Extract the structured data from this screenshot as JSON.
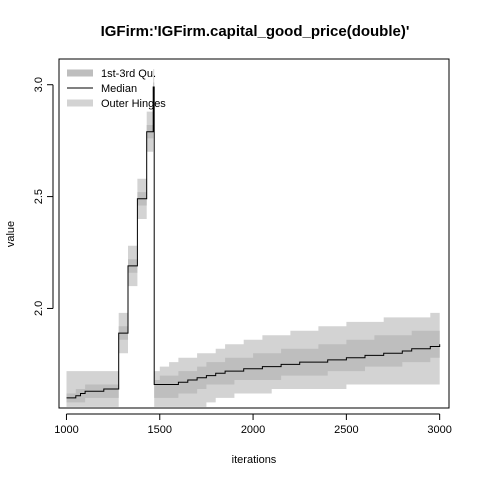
{
  "chart_data": {
    "type": "area",
    "title": "IGFirm:'IGFirm.capital_good_price(double)'",
    "xlabel": "iterations",
    "ylabel": "value",
    "xlim": [
      960,
      3050
    ],
    "ylim": [
      1.555,
      3.115
    ],
    "x_ticks": [
      1000,
      1500,
      2000,
      2500,
      3000
    ],
    "x_tick_labels": [
      "1000",
      "1500",
      "2000",
      "2500",
      "3000"
    ],
    "y_ticks": [
      2.0,
      2.5,
      3.0
    ],
    "y_tick_labels": [
      "2.0",
      "2.5",
      "3.0"
    ],
    "legend": {
      "position": "top-left",
      "entries": [
        {
          "label": "1st-3rd Qu.",
          "color": "#bebebe",
          "style": "thick-line"
        },
        {
          "label": "Median",
          "color": "#000000",
          "style": "line"
        },
        {
          "label": "Outer Hinges",
          "color": "#d3d3d3",
          "style": "thick-line"
        }
      ]
    },
    "colors": {
      "iqr": "#bebebe",
      "hinges": "#d3d3d3",
      "median": "#000000"
    },
    "series": [
      {
        "name": "Outer Hinges",
        "x": [
          1000,
          1050,
          1100,
          1150,
          1200,
          1230,
          1280,
          1330,
          1380,
          1430,
          1465,
          1470,
          1480,
          1500,
          1550,
          1600,
          1650,
          1700,
          1750,
          1800,
          1850,
          1900,
          1950,
          2000,
          2050,
          2100,
          2150,
          2200,
          2250,
          2300,
          2350,
          2400,
          2450,
          2500,
          2550,
          2600,
          2650,
          2700,
          2750,
          2800,
          2850,
          2900,
          2950,
          3000
        ],
        "low": [
          1.56,
          1.56,
          1.56,
          1.56,
          1.56,
          1.56,
          1.8,
          2.1,
          2.4,
          2.7,
          2.9,
          1.56,
          1.56,
          1.56,
          1.56,
          1.56,
          1.56,
          1.56,
          1.58,
          1.6,
          1.6,
          1.62,
          1.62,
          1.62,
          1.62,
          1.64,
          1.64,
          1.64,
          1.64,
          1.64,
          1.64,
          1.64,
          1.64,
          1.66,
          1.66,
          1.66,
          1.66,
          1.66,
          1.66,
          1.66,
          1.66,
          1.66,
          1.66,
          1.66
        ],
        "high": [
          1.72,
          1.72,
          1.72,
          1.72,
          1.72,
          1.72,
          1.98,
          2.28,
          2.58,
          2.88,
          3.07,
          1.72,
          1.72,
          1.74,
          1.76,
          1.78,
          1.78,
          1.8,
          1.8,
          1.82,
          1.84,
          1.84,
          1.86,
          1.86,
          1.88,
          1.88,
          1.88,
          1.9,
          1.9,
          1.9,
          1.92,
          1.92,
          1.92,
          1.94,
          1.94,
          1.94,
          1.94,
          1.96,
          1.96,
          1.96,
          1.96,
          1.96,
          1.98,
          1.98
        ]
      },
      {
        "name": "1st-3rd Qu.",
        "x": [
          1000,
          1050,
          1100,
          1150,
          1200,
          1230,
          1280,
          1330,
          1380,
          1430,
          1465,
          1470,
          1480,
          1500,
          1550,
          1600,
          1650,
          1700,
          1750,
          1800,
          1850,
          1900,
          1950,
          2000,
          2050,
          2100,
          2150,
          2200,
          2250,
          2300,
          2350,
          2400,
          2450,
          2500,
          2550,
          2600,
          2650,
          2700,
          2750,
          2800,
          2850,
          2900,
          2950,
          3000
        ],
        "low": [
          1.58,
          1.58,
          1.6,
          1.6,
          1.6,
          1.6,
          1.86,
          2.16,
          2.46,
          2.76,
          2.95,
          1.6,
          1.6,
          1.6,
          1.6,
          1.62,
          1.62,
          1.64,
          1.66,
          1.66,
          1.66,
          1.68,
          1.68,
          1.68,
          1.68,
          1.68,
          1.7,
          1.7,
          1.7,
          1.7,
          1.7,
          1.72,
          1.72,
          1.72,
          1.72,
          1.74,
          1.74,
          1.74,
          1.74,
          1.76,
          1.76,
          1.76,
          1.78,
          1.78
        ],
        "high": [
          1.62,
          1.64,
          1.66,
          1.66,
          1.66,
          1.66,
          1.92,
          2.22,
          2.52,
          2.82,
          3.01,
          1.68,
          1.68,
          1.7,
          1.7,
          1.72,
          1.72,
          1.74,
          1.76,
          1.76,
          1.78,
          1.78,
          1.78,
          1.8,
          1.8,
          1.8,
          1.82,
          1.82,
          1.82,
          1.82,
          1.84,
          1.84,
          1.84,
          1.86,
          1.86,
          1.86,
          1.88,
          1.88,
          1.88,
          1.88,
          1.9,
          1.9,
          1.9,
          1.91
        ]
      },
      {
        "name": "Median",
        "x": [
          1000,
          1025,
          1050,
          1075,
          1100,
          1150,
          1200,
          1230,
          1280,
          1330,
          1380,
          1430,
          1465,
          1470,
          1480,
          1500,
          1550,
          1600,
          1650,
          1700,
          1750,
          1800,
          1850,
          1900,
          1950,
          2000,
          2050,
          2100,
          2150,
          2200,
          2250,
          2300,
          2350,
          2400,
          2450,
          2500,
          2550,
          2600,
          2650,
          2700,
          2750,
          2800,
          2850,
          2900,
          2950,
          3000
        ],
        "y": [
          1.6,
          1.6,
          1.61,
          1.62,
          1.63,
          1.63,
          1.64,
          1.64,
          1.89,
          2.19,
          2.49,
          2.79,
          2.99,
          1.66,
          1.66,
          1.66,
          1.66,
          1.67,
          1.68,
          1.69,
          1.7,
          1.71,
          1.72,
          1.72,
          1.73,
          1.73,
          1.74,
          1.74,
          1.75,
          1.75,
          1.76,
          1.76,
          1.76,
          1.77,
          1.77,
          1.78,
          1.78,
          1.79,
          1.79,
          1.8,
          1.8,
          1.81,
          1.82,
          1.82,
          1.83,
          1.84
        ]
      }
    ]
  }
}
